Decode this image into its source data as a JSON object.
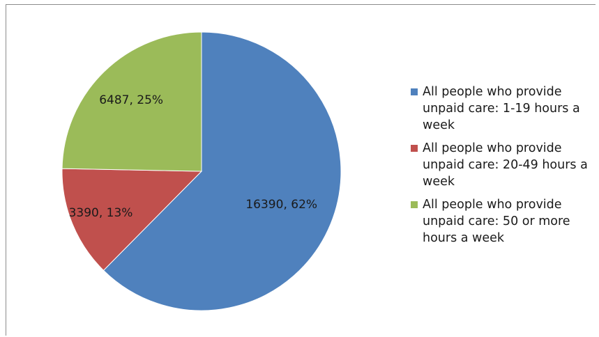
{
  "chart_data": {
    "type": "pie",
    "title": "",
    "slices": [
      {
        "name": "All people who provide unpaid care: 1-19 hours a week",
        "value": 16390,
        "percent": 62,
        "label": "16390, 62%",
        "color": "#4f81bd"
      },
      {
        "name": "All people who provide unpaid care: 20-49 hours a week",
        "value": 3390,
        "percent": 13,
        "label": "3390, 13%",
        "color": "#c0504d"
      },
      {
        "name": "All people who provide unpaid care: 50 or more hours a week",
        "value": 6487,
        "percent": 25,
        "label": "6487, 25%",
        "color": "#9bbb59"
      }
    ],
    "legend_position": "right",
    "start_angle": "12 o'clock",
    "direction": "clockwise"
  }
}
